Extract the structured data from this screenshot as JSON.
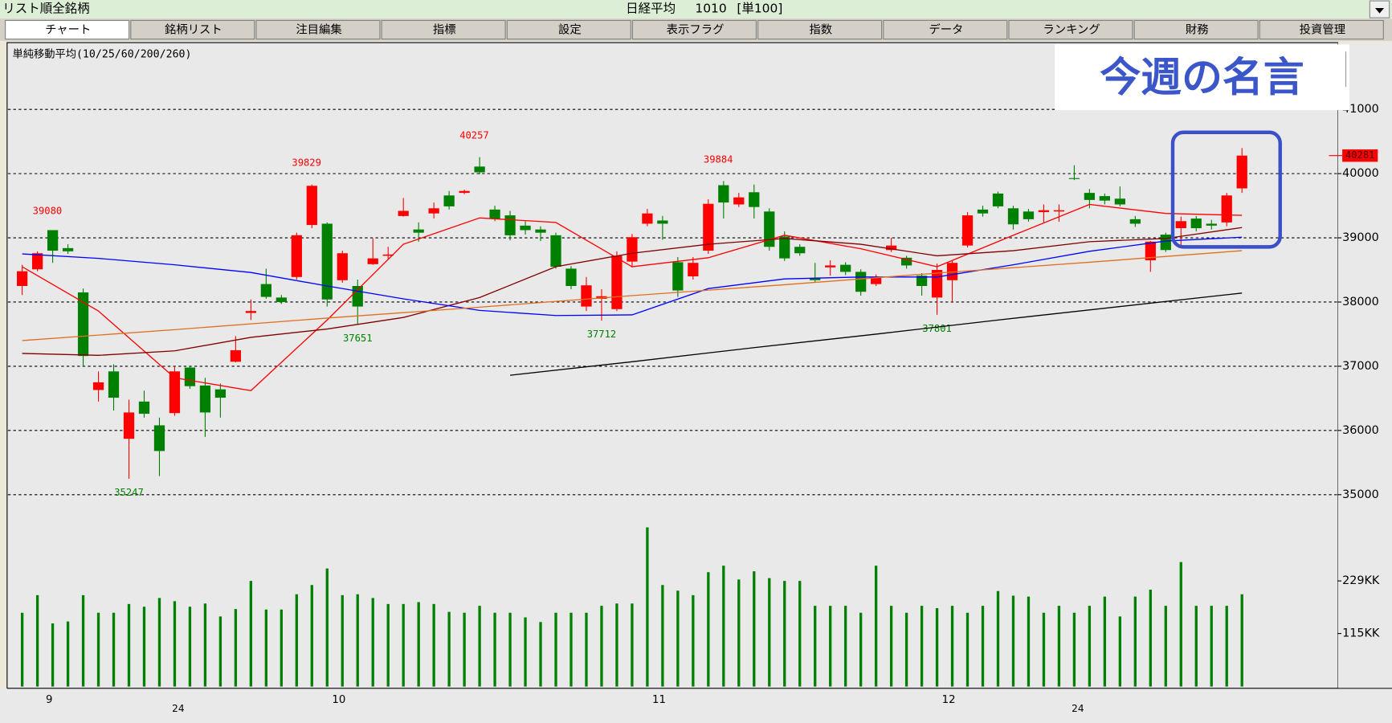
{
  "top_bar": {
    "list_label": "リスト順全銘柄",
    "symbol_name": "日経平均",
    "symbol_code": "1010",
    "unit": "[単100]"
  },
  "tabs": [
    "チャート",
    "銘柄リスト",
    "注目編集",
    "指標",
    "設定",
    "表示フラグ",
    "指数",
    "データ",
    "ランキング",
    "財務",
    "投資管理"
  ],
  "overlay_text": "今週の名言",
  "chart_data": {
    "type": "candlestick",
    "title": "単純移動平均(10/25/60/200/260)",
    "up_color": "#ff0000",
    "down_color": "#008000",
    "volume_color": "#008000",
    "categories": [
      null,
      null,
      "9",
      null,
      null,
      null,
      null,
      null,
      null,
      null,
      null,
      null,
      null,
      null,
      null,
      null,
      null,
      null,
      null,
      null,
      null,
      "10",
      null,
      null,
      null,
      null,
      null,
      null,
      null,
      null,
      null,
      null,
      null,
      null,
      null,
      null,
      null,
      null,
      null,
      null,
      null,
      null,
      "11",
      null,
      null,
      null,
      null,
      null,
      null,
      null,
      null,
      null,
      null,
      null,
      null,
      null,
      null,
      null,
      null,
      null,
      null,
      "12",
      null,
      null,
      null,
      null,
      null,
      null,
      null,
      null,
      null,
      null,
      null,
      null,
      null,
      null,
      null,
      null,
      null,
      null,
      null
    ],
    "sublabels": [
      null,
      null,
      null,
      null,
      null,
      null,
      null,
      null,
      null,
      null,
      "24",
      null,
      null,
      null,
      null,
      null,
      null,
      null,
      null,
      null,
      null,
      null,
      null,
      null,
      null,
      null,
      null,
      null,
      null,
      null,
      null,
      null,
      null,
      null,
      null,
      null,
      null,
      null,
      null,
      null,
      null,
      null,
      null,
      null,
      null,
      null,
      null,
      null,
      null,
      null,
      null,
      null,
      null,
      null,
      null,
      null,
      null,
      null,
      null,
      null,
      null,
      null,
      null,
      null,
      null,
      null,
      null,
      null,
      null,
      "24",
      null,
      null,
      null,
      null,
      null,
      null,
      null,
      null,
      null,
      null,
      null
    ],
    "open": [
      38250,
      38510,
      39120,
      38840,
      38150,
      36630,
      36920,
      35870,
      36450,
      36080,
      36270,
      36980,
      36700,
      36640,
      37070,
      37830,
      38280,
      38070,
      38390,
      39200,
      39220,
      38340,
      38250,
      38590,
      38720,
      39340,
      39130,
      39380,
      39660,
      39700,
      40110,
      39440,
      39350,
      39190,
      39130,
      39040,
      38520,
      37930,
      38050,
      37890,
      38630,
      39220,
      39270,
      38620,
      38400,
      38800,
      39820,
      39520,
      39710,
      39410,
      39020,
      38860,
      38370,
      38540,
      38580,
      38470,
      38280,
      38810,
      38690,
      38410,
      38070,
      38340,
      38880,
      39440,
      39690,
      39460,
      39410,
      39400,
      39410,
      39930,
      39700,
      39650,
      39610,
      39290,
      38650,
      39050,
      39150,
      39300,
      39220,
      39240,
      39770
    ],
    "high": [
      38580,
      38790,
      39080,
      38900,
      38210,
      36920,
      37030,
      36480,
      36620,
      36200,
      37000,
      37010,
      36820,
      36730,
      37470,
      38040,
      38520,
      38110,
      39080,
      39829,
      39240,
      38800,
      38350,
      38990,
      38860,
      39620,
      39240,
      39550,
      39730,
      39750,
      40257,
      39500,
      39420,
      39260,
      39180,
      39080,
      38560,
      38390,
      38200,
      38790,
      39060,
      39450,
      39340,
      38700,
      38700,
      39600,
      39884,
      39700,
      39830,
      39460,
      39100,
      38900,
      38610,
      38650,
      38620,
      38510,
      38430,
      39000,
      38720,
      38450,
      38600,
      38650,
      39400,
      39500,
      39720,
      39500,
      39450,
      39520,
      39520,
      40130,
      39760,
      39690,
      39800,
      39340,
      38950,
      39080,
      39330,
      39340,
      39280,
      39700,
      40398
    ],
    "low": [
      38110,
      38480,
      38610,
      38750,
      37000,
      36450,
      36310,
      35247,
      36200,
      35290,
      36230,
      36650,
      35900,
      36200,
      37060,
      37720,
      38050,
      37970,
      38350,
      39150,
      37930,
      38300,
      37651,
      38580,
      38660,
      39330,
      38940,
      39300,
      39440,
      39680,
      39990,
      39260,
      38960,
      39050,
      38950,
      38520,
      38200,
      37860,
      37712,
      37860,
      38540,
      39180,
      38970,
      38080,
      38350,
      38750,
      39300,
      39480,
      39300,
      38800,
      38640,
      38720,
      38300,
      38410,
      38420,
      38100,
      38250,
      38780,
      38520,
      38100,
      37801,
      38000,
      38850,
      39330,
      39460,
      39130,
      39250,
      39240,
      39250,
      39900,
      39460,
      39520,
      39490,
      39170,
      38470,
      38780,
      38850,
      39100,
      39130,
      39180,
      39700
    ],
    "close": [
      38480,
      38760,
      38800,
      38790,
      37160,
      36750,
      36510,
      36280,
      36260,
      35680,
      36920,
      36690,
      36280,
      36510,
      37250,
      37860,
      38080,
      38000,
      39040,
      39810,
      38040,
      38760,
      37930,
      38680,
      38740,
      39420,
      39080,
      39460,
      39490,
      39730,
      40020,
      39300,
      39040,
      39120,
      39080,
      38550,
      38250,
      38260,
      38090,
      38720,
      39010,
      39380,
      39220,
      38180,
      38610,
      39530,
      39550,
      39630,
      39480,
      38860,
      38680,
      38760,
      38340,
      38570,
      38470,
      38160,
      38390,
      38880,
      38570,
      38250,
      38500,
      38610,
      39350,
      39380,
      39490,
      39210,
      39290,
      39430,
      39430,
      39920,
      39590,
      39580,
      39520,
      39220,
      38940,
      38810,
      39260,
      39150,
      39190,
      39660,
      40281
    ],
    "high_labels": [
      null,
      null,
      39080,
      null,
      null,
      null,
      null,
      null,
      null,
      null,
      null,
      null,
      null,
      null,
      null,
      null,
      null,
      null,
      null,
      39829,
      null,
      null,
      null,
      null,
      null,
      null,
      null,
      null,
      null,
      null,
      40257,
      null,
      null,
      null,
      null,
      null,
      null,
      null,
      null,
      null,
      null,
      null,
      null,
      null,
      null,
      null,
      39884,
      null,
      null,
      null,
      null,
      null,
      null,
      null,
      null,
      null,
      null,
      null,
      null,
      null,
      null,
      null,
      null,
      null,
      null,
      null,
      null,
      null,
      null,
      null,
      null,
      null,
      null,
      null,
      null,
      null,
      null,
      null,
      null,
      null,
      null
    ],
    "low_labels": [
      null,
      null,
      null,
      null,
      null,
      null,
      null,
      35247,
      null,
      null,
      null,
      null,
      null,
      null,
      null,
      null,
      null,
      null,
      null,
      null,
      null,
      null,
      37651,
      null,
      null,
      null,
      null,
      null,
      null,
      null,
      null,
      null,
      null,
      null,
      null,
      null,
      null,
      null,
      37712,
      null,
      null,
      null,
      null,
      null,
      null,
      null,
      null,
      null,
      null,
      null,
      null,
      null,
      null,
      null,
      null,
      null,
      null,
      null,
      null,
      null,
      37801,
      null,
      null,
      null,
      null,
      null,
      null,
      null,
      null,
      null,
      null,
      null,
      null,
      null,
      null,
      null,
      null,
      null,
      null,
      null,
      null
    ],
    "volume": [
      160,
      198,
      137,
      141,
      198,
      160,
      160,
      179,
      173,
      192,
      185,
      173,
      180,
      152,
      168,
      229,
      167,
      167,
      200,
      220,
      256,
      198,
      200,
      192,
      179,
      179,
      183,
      179,
      162,
      160,
      175,
      160,
      160,
      150,
      140,
      160,
      160,
      160,
      175,
      180,
      180,
      345,
      220,
      208,
      198,
      248,
      262,
      232,
      250,
      235,
      229,
      229,
      175,
      175,
      175,
      160,
      262,
      175,
      160,
      175,
      170,
      175,
      160,
      175,
      207,
      197,
      195,
      160,
      175,
      160,
      175,
      195,
      152,
      195,
      210,
      175,
      270,
      175,
      175,
      175,
      200
    ],
    "moving_averages": [
      {
        "color": "#ff0000",
        "x": [
          0,
          5,
          10,
          15,
          20,
          25,
          30,
          35,
          40,
          45,
          50,
          55,
          60,
          65,
          70,
          75,
          80
        ],
        "values": [
          38550,
          37860,
          36820,
          36620,
          37720,
          38900,
          39310,
          39240,
          38550,
          38690,
          39040,
          38830,
          38550,
          39040,
          39520,
          39380,
          39350
        ]
      },
      {
        "color": "#800000",
        "x": [
          0,
          5,
          10,
          15,
          20,
          25,
          30,
          35,
          40,
          45,
          50,
          55,
          60,
          65,
          70,
          75,
          80
        ],
        "values": [
          37200,
          37170,
          37240,
          37450,
          37580,
          37760,
          38070,
          38550,
          38760,
          38900,
          38990,
          38900,
          38720,
          38800,
          38940,
          38990,
          39160
        ]
      },
      {
        "color": "#0000ff",
        "x": [
          0,
          5,
          10,
          15,
          20,
          25,
          30,
          35,
          40,
          45,
          50,
          55,
          60,
          65,
          70,
          75,
          80
        ],
        "values": [
          38750,
          38680,
          38580,
          38460,
          38250,
          38050,
          37870,
          37790,
          37800,
          38210,
          38360,
          38390,
          38390,
          38580,
          38790,
          38950,
          39010
        ]
      },
      {
        "color": "#e07020",
        "x": [
          0,
          10,
          20,
          30,
          40,
          50,
          60,
          70,
          80
        ],
        "values": [
          37400,
          37570,
          37750,
          37920,
          38100,
          38270,
          38450,
          38620,
          38800
        ]
      },
      {
        "color": "#000000",
        "x": [
          32,
          40,
          48,
          56,
          64,
          72,
          80
        ],
        "values": [
          36860,
          37070,
          37290,
          37500,
          37720,
          37930,
          38140
        ]
      }
    ],
    "ylim": [
      34750,
      42040
    ],
    "yticks": [
      35000,
      36000,
      37000,
      38000,
      39000,
      40000,
      41000
    ],
    "volume_ylim": [
      0,
      410
    ],
    "volume_ticks": [
      {
        "value": 229,
        "label": "229KK"
      },
      {
        "value": 115,
        "label": "115KK"
      }
    ],
    "grid": true
  }
}
